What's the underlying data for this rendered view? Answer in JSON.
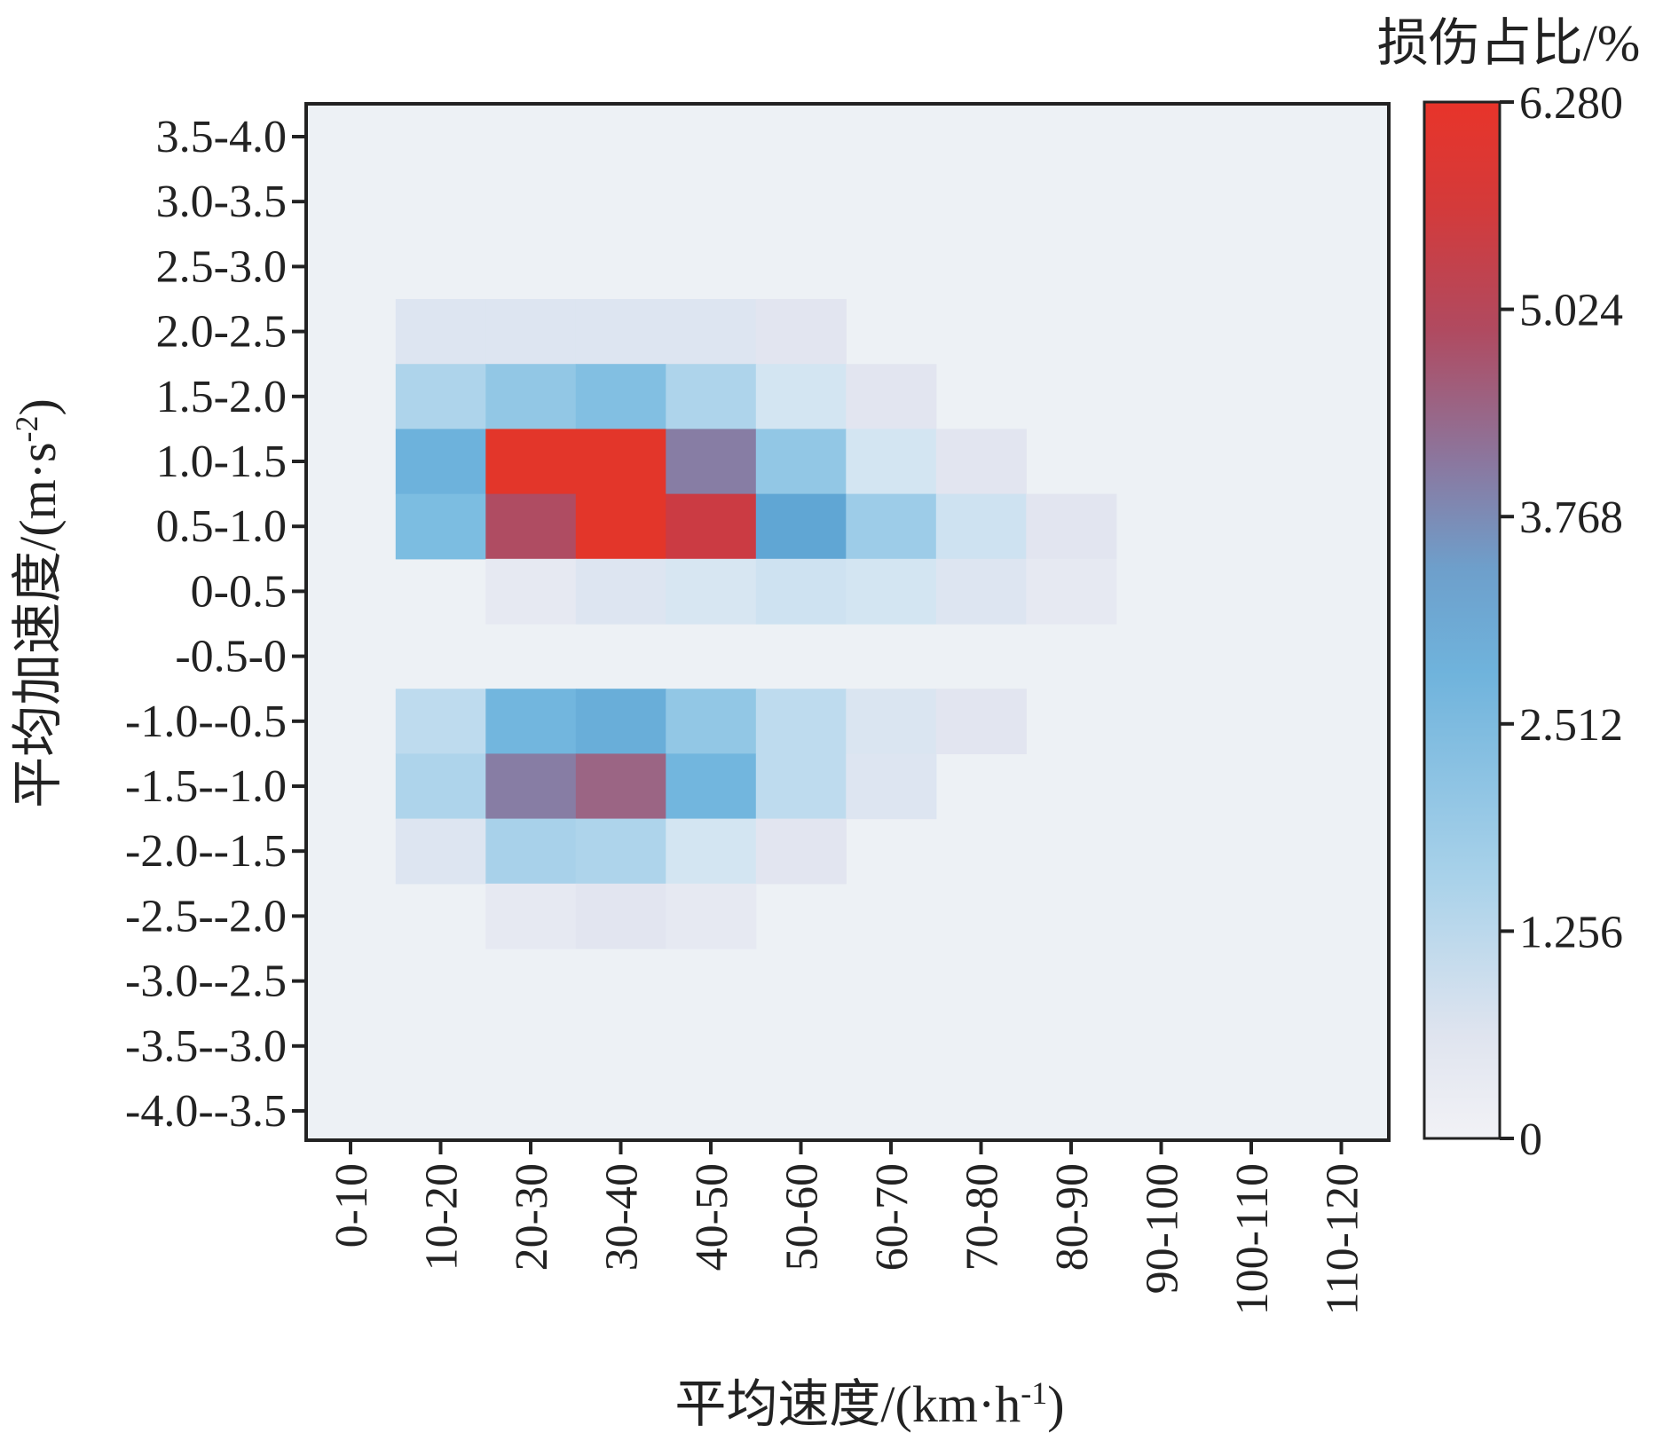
{
  "chart_data": {
    "type": "heatmap",
    "xlabel": "平均速度/(km·h",
    "xlabel_sup": "-1",
    "xlabel_end": ")",
    "ylabel": "平均加速度/(m·s",
    "ylabel_sup": "-2",
    "ylabel_end": ")",
    "colorbar_label": "损伤占比/%",
    "colorbar_ticks": [
      "6.280",
      "5.024",
      "3.768",
      "2.512",
      "1.256",
      "0"
    ],
    "colorbar_range": [
      0,
      6.28
    ],
    "colors": {
      "low": "#edf1f5",
      "mid": "#6fb3dc",
      "high": "#e3362a",
      "frame": "#222222"
    },
    "x_categories": [
      "0-10",
      "10-20",
      "20-30",
      "30-40",
      "40-50",
      "50-60",
      "60-70",
      "70-80",
      "80-90",
      "90-100",
      "100-110",
      "110-120"
    ],
    "y_categories": [
      "3.5-4.0",
      "3.0-3.5",
      "2.5-3.0",
      "2.0-2.5",
      "1.5-2.0",
      "1.0-1.5",
      "0.5-1.0",
      "0-0.5",
      "-0.5-0",
      "-1.0--0.5",
      "-1.5--1.0",
      "-2.0--1.5",
      "-2.5--2.0",
      "-3.0--2.5",
      "-3.5--3.0",
      "-4.0--3.5"
    ],
    "values": [
      [
        0,
        0,
        0,
        0,
        0,
        0,
        0,
        0,
        0,
        0,
        0,
        0
      ],
      [
        0,
        0,
        0,
        0,
        0,
        0,
        0,
        0,
        0,
        0,
        0,
        0
      ],
      [
        0,
        0,
        0,
        0,
        0,
        0,
        0,
        0,
        0,
        0,
        0,
        0
      ],
      [
        0,
        0.5,
        0.5,
        0.5,
        0.5,
        0.3,
        0,
        0,
        0,
        0,
        0,
        0
      ],
      [
        0,
        1.5,
        2.0,
        2.3,
        1.5,
        0.8,
        0.3,
        0,
        0,
        0,
        0,
        0
      ],
      [
        0,
        2.7,
        6.28,
        6.28,
        4.2,
        2.0,
        0.8,
        0.3,
        0,
        0,
        0,
        0
      ],
      [
        0,
        2.4,
        5.0,
        6.28,
        5.6,
        3.0,
        1.8,
        0.9,
        0.3,
        0,
        0,
        0
      ],
      [
        0,
        0,
        0.2,
        0.5,
        0.7,
        0.9,
        0.8,
        0.5,
        0.2,
        0,
        0,
        0
      ],
      [
        0,
        0,
        0,
        0,
        0,
        0,
        0,
        0,
        0,
        0,
        0,
        0
      ],
      [
        0,
        1.2,
        2.6,
        2.8,
        2.0,
        1.2,
        0.6,
        0.3,
        0,
        0,
        0,
        0
      ],
      [
        0,
        1.5,
        4.2,
        4.6,
        2.6,
        1.2,
        0.5,
        0,
        0,
        0,
        0,
        0
      ],
      [
        0,
        0.5,
        1.6,
        1.5,
        0.8,
        0.3,
        0,
        0,
        0,
        0,
        0,
        0
      ],
      [
        0,
        0,
        0.2,
        0.3,
        0.2,
        0,
        0,
        0,
        0,
        0,
        0,
        0
      ],
      [
        0,
        0,
        0,
        0,
        0,
        0,
        0,
        0,
        0,
        0,
        0,
        0
      ],
      [
        0,
        0,
        0,
        0,
        0,
        0,
        0,
        0,
        0,
        0,
        0,
        0
      ],
      [
        0,
        0,
        0,
        0,
        0,
        0,
        0,
        0,
        0,
        0,
        0,
        0
      ]
    ]
  }
}
